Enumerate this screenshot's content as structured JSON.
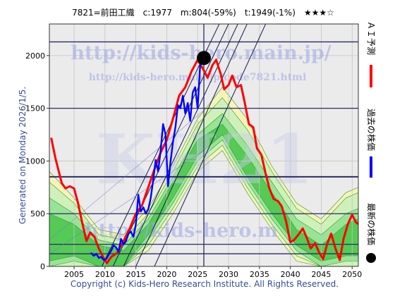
{
  "header": {
    "title": "7821=前田工織　c:1977　m:804(-59%)　t:1949(-1%)　★★★☆"
  },
  "side_labels": {
    "generated": "Generated on Monday 2026/1/5.",
    "ai_forecast": "ＡＩ予測",
    "past_price": "過去の株価",
    "latest_price": "最新の株価"
  },
  "footer": {
    "copyright": "Copyright (c) Kids-Hero Research Institute. All Rights Reserved."
  },
  "watermarks": {
    "url_main": "http://kids-hero.main.jp/",
    "url_code": "http://kids-hero.main.jp/code7821.html",
    "big": "KH21",
    "bottom": "http://kids-hero.m"
  },
  "colors": {
    "plot_bg": "#ebebeb",
    "forecast": "#ff0000",
    "past": "#0000ff",
    "latest": "#000000",
    "band_dark": "#3fc23f",
    "band_mid": "#8fe08f",
    "band_light": "#c8f0b8",
    "band_yellow": "#f8f5b0",
    "hline": "#2b2b66",
    "diag": "#1a1a4d"
  },
  "chart_data": {
    "type": "line",
    "xlim": [
      2001,
      2051
    ],
    "ylim": [
      0,
      2300
    ],
    "xticks": [
      2005,
      2010,
      2015,
      2020,
      2025,
      2030,
      2035,
      2040,
      2045,
      2050
    ],
    "yticks": [
      0,
      500,
      1000,
      1500,
      2000
    ],
    "hlines": [
      120,
      210,
      500,
      850,
      1500,
      2130
    ],
    "vline_x": 2026,
    "latest_point": {
      "x": 2026.0,
      "y": 1977
    },
    "series": [
      {
        "key": "ai",
        "x": [
          2001.3,
          2002,
          2003,
          2003.6,
          2004.3,
          2005,
          2005.6,
          2006.3,
          2007,
          2007.6,
          2008.3,
          2009,
          2009.6,
          2010.3,
          2011,
          2012,
          2013,
          2014,
          2015,
          2016,
          2017,
          2018,
          2019,
          2020,
          2021,
          2022,
          2023,
          2024,
          2025,
          2026,
          2026.6,
          2027.4,
          2028,
          2028.7,
          2029.3,
          2030,
          2030.6,
          2031.3,
          2032,
          2032.6,
          2033.3,
          2034,
          2034.6,
          2035.3,
          2036,
          2036.6,
          2037.3,
          2038,
          2038.6,
          2039.3,
          2040,
          2040.6,
          2041.3,
          2042,
          2042.6,
          2043.3,
          2044,
          2044.6,
          2045.3,
          2046,
          2046.6,
          2047.3,
          2048,
          2048.6,
          2049.3,
          2050,
          2050.6,
          2051
        ],
        "y": [
          1220,
          1020,
          790,
          740,
          760,
          740,
          610,
          420,
          240,
          320,
          280,
          170,
          100,
          30,
          90,
          130,
          240,
          360,
          500,
          580,
          750,
          920,
          1080,
          1200,
          1400,
          1620,
          1700,
          1850,
          1960,
          1860,
          1790,
          1910,
          1960,
          1830,
          1680,
          1720,
          1810,
          1700,
          1720,
          1560,
          1350,
          1320,
          1120,
          1060,
          880,
          740,
          640,
          620,
          570,
          430,
          230,
          250,
          300,
          360,
          280,
          170,
          220,
          140,
          70,
          220,
          310,
          170,
          60,
          260,
          400,
          490,
          420,
          400
        ]
      }
    ],
    "past_series": {
      "x": [
        2007.7,
        2008.2,
        2008.6,
        2009,
        2009.4,
        2009.8,
        2010.2,
        2010.6,
        2011,
        2011.4,
        2011.8,
        2012.2,
        2012.6,
        2013,
        2013.4,
        2013.8,
        2014.2,
        2014.6,
        2015,
        2015.4,
        2015.8,
        2016.2,
        2016.6,
        2017,
        2017.4,
        2017.8,
        2018.2,
        2018.6,
        2019,
        2019.4,
        2019.8,
        2020.2,
        2020.6,
        2021,
        2021.4,
        2021.8,
        2022.2,
        2022.6,
        2023,
        2023.4,
        2023.8,
        2024.2,
        2024.6,
        2025,
        2025.4,
        2025.8,
        2026
      ],
      "y": [
        130,
        100,
        120,
        80,
        90,
        60,
        70,
        110,
        150,
        200,
        180,
        140,
        260,
        210,
        240,
        310,
        330,
        280,
        400,
        680,
        520,
        560,
        500,
        540,
        650,
        820,
        1010,
        900,
        1100,
        1350,
        1250,
        760,
        990,
        1180,
        1320,
        1530,
        1500,
        1620,
        1450,
        1550,
        1380,
        1650,
        1700,
        1500,
        1900,
        2010,
        1977
      ]
    },
    "bands": [
      {
        "tone": "yellow",
        "x": [
          2001,
          2005,
          2009,
          2013,
          2017,
          2021,
          2025,
          2029,
          2033,
          2037,
          2041,
          2045,
          2049,
          2051
        ],
        "lo": [
          0,
          0,
          0,
          0,
          150,
          500,
          900,
          1100,
          700,
          350,
          50,
          0,
          0,
          0
        ],
        "hi": [
          900,
          650,
          350,
          300,
          550,
          950,
          1400,
          1700,
          1400,
          950,
          600,
          450,
          700,
          750
        ]
      },
      {
        "tone": "light",
        "x": [
          2001,
          2005,
          2009,
          2013,
          2017,
          2021,
          2025,
          2029,
          2033,
          2037,
          2041,
          2045,
          2049,
          2051
        ],
        "lo": [
          0,
          0,
          0,
          0,
          200,
          550,
          950,
          1150,
          750,
          400,
          100,
          0,
          0,
          0
        ],
        "hi": [
          800,
          600,
          300,
          250,
          500,
          900,
          1350,
          1600,
          1300,
          900,
          550,
          400,
          650,
          700
        ]
      },
      {
        "tone": "mid",
        "x": [
          2001,
          2005,
          2009,
          2013,
          2017,
          2021,
          2025,
          2029,
          2033,
          2037,
          2041,
          2045,
          2049,
          2051
        ],
        "lo": [
          0,
          50,
          0,
          0,
          250,
          600,
          1000,
          1200,
          800,
          450,
          150,
          0,
          50,
          50
        ],
        "hi": [
          650,
          500,
          250,
          200,
          450,
          850,
          1250,
          1450,
          1150,
          800,
          450,
          300,
          500,
          550
        ]
      },
      {
        "tone": "dark",
        "x": [
          2001,
          2005,
          2009,
          2013,
          2017,
          2021,
          2025,
          2029,
          2033,
          2037,
          2041,
          2045,
          2049,
          2051
        ],
        "lo": [
          50,
          100,
          0,
          0,
          300,
          650,
          1050,
          1250,
          850,
          500,
          200,
          50,
          100,
          100
        ],
        "hi": [
          500,
          400,
          200,
          150,
          400,
          800,
          1200,
          1350,
          1050,
          700,
          350,
          200,
          400,
          450
        ]
      }
    ],
    "diagonals": [
      {
        "x1": 2009.5,
        "y1": 0,
        "x2": 2028.5,
        "y2": 2300
      },
      {
        "x1": 2011.3,
        "y1": 0,
        "x2": 2030.0,
        "y2": 2300
      },
      {
        "x1": 2013.0,
        "y1": 0,
        "x2": 2031.5,
        "y2": 2300
      },
      {
        "x1": 2015.0,
        "y1": 0,
        "x2": 2033.0,
        "y2": 2300
      },
      {
        "x1": 2018.0,
        "y1": 0,
        "x2": 2036.0,
        "y2": 2300
      }
    ],
    "hero_lines": [
      {
        "x1": 2001,
        "y1": 250,
        "x2": 2026,
        "y2": 1480
      },
      {
        "x1": 2001,
        "y1": 120,
        "x2": 2026,
        "y2": 1100
      }
    ]
  }
}
